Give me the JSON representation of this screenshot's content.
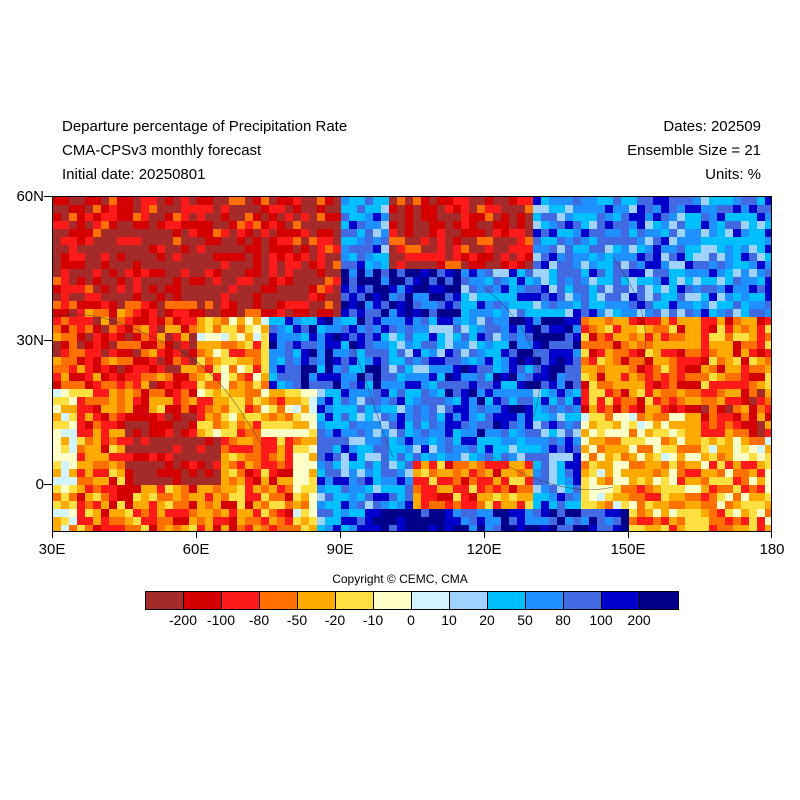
{
  "header": {
    "title": "Departure percentage of Precipitation Rate",
    "subtitle": "CMA-CPSv3 monthly forecast",
    "initial_date": "Initial date: 20250801",
    "dates": "Dates: 202509",
    "ensemble": "Ensemble Size = 21",
    "units": "Units: %"
  },
  "axes": {
    "y_ticks": [
      "60N",
      "30N",
      "0"
    ],
    "x_ticks": [
      "30E",
      "60E",
      "90E",
      "120E",
      "150E",
      "180"
    ],
    "lon_range": [
      30,
      180
    ],
    "lat_range": [
      -10,
      60
    ]
  },
  "copyright": "Copyright © CEMC, CMA",
  "colorbar": {
    "colors": [
      "#a52a2a",
      "#d40000",
      "#ff1a1a",
      "#ff7000",
      "#ffaa00",
      "#ffe040",
      "#ffffc8",
      "#d2f4ff",
      "#a0d2ff",
      "#00bfff",
      "#1e90ff",
      "#4169e1",
      "#0000cd",
      "#00008b"
    ],
    "labels": [
      "-200",
      "-100",
      "-80",
      "-50",
      "-20",
      "-10",
      "0",
      "10",
      "20",
      "50",
      "80",
      "100",
      "200"
    ]
  },
  "map_regions": [
    {
      "lon": [
        30,
        90
      ],
      "lat": [
        35,
        60
      ],
      "level": 1
    },
    {
      "lon": [
        40,
        85
      ],
      "lat": [
        38,
        50
      ],
      "level": 0
    },
    {
      "lon": [
        30,
        60
      ],
      "lat": [
        20,
        38
      ],
      "level": 2
    },
    {
      "lon": [
        35,
        80
      ],
      "lat": [
        -10,
        20
      ],
      "level": 3
    },
    {
      "lon": [
        45,
        65
      ],
      "lat": [
        0,
        15
      ],
      "level": 0
    },
    {
      "lon": [
        60,
        80
      ],
      "lat": [
        10,
        30
      ],
      "level": 4
    },
    {
      "lon": [
        75,
        100
      ],
      "lat": [
        20,
        35
      ],
      "level": 11
    },
    {
      "lon": [
        90,
        115
      ],
      "lat": [
        35,
        45
      ],
      "level": 12
    },
    {
      "lon": [
        100,
        130
      ],
      "lat": [
        45,
        60
      ],
      "level": 1
    },
    {
      "lon": [
        105,
        130
      ],
      "lat": [
        -10,
        5
      ],
      "level": 3
    },
    {
      "lon": [
        95,
        110
      ],
      "lat": [
        -10,
        -5
      ],
      "level": 13
    },
    {
      "lon": [
        110,
        150
      ],
      "lat": [
        -10,
        -5
      ],
      "level": 12
    },
    {
      "lon": [
        125,
        145
      ],
      "lat": [
        20,
        35
      ],
      "level": 12
    },
    {
      "lon": [
        112,
        130
      ],
      "lat": [
        10,
        25
      ],
      "level": 11
    },
    {
      "lon": [
        140,
        180
      ],
      "lat": [
        35,
        60
      ],
      "level": 10
    },
    {
      "lon": [
        140,
        180
      ],
      "lat": [
        15,
        35
      ],
      "level": 3
    },
    {
      "lon": [
        150,
        180
      ],
      "lat": [
        -10,
        5
      ],
      "level": 4
    },
    {
      "lon": [
        165,
        180
      ],
      "lat": [
        10,
        20
      ],
      "level": 2
    },
    {
      "lon": [
        85,
        100
      ],
      "lat": [
        0,
        15
      ],
      "level": 10
    }
  ]
}
